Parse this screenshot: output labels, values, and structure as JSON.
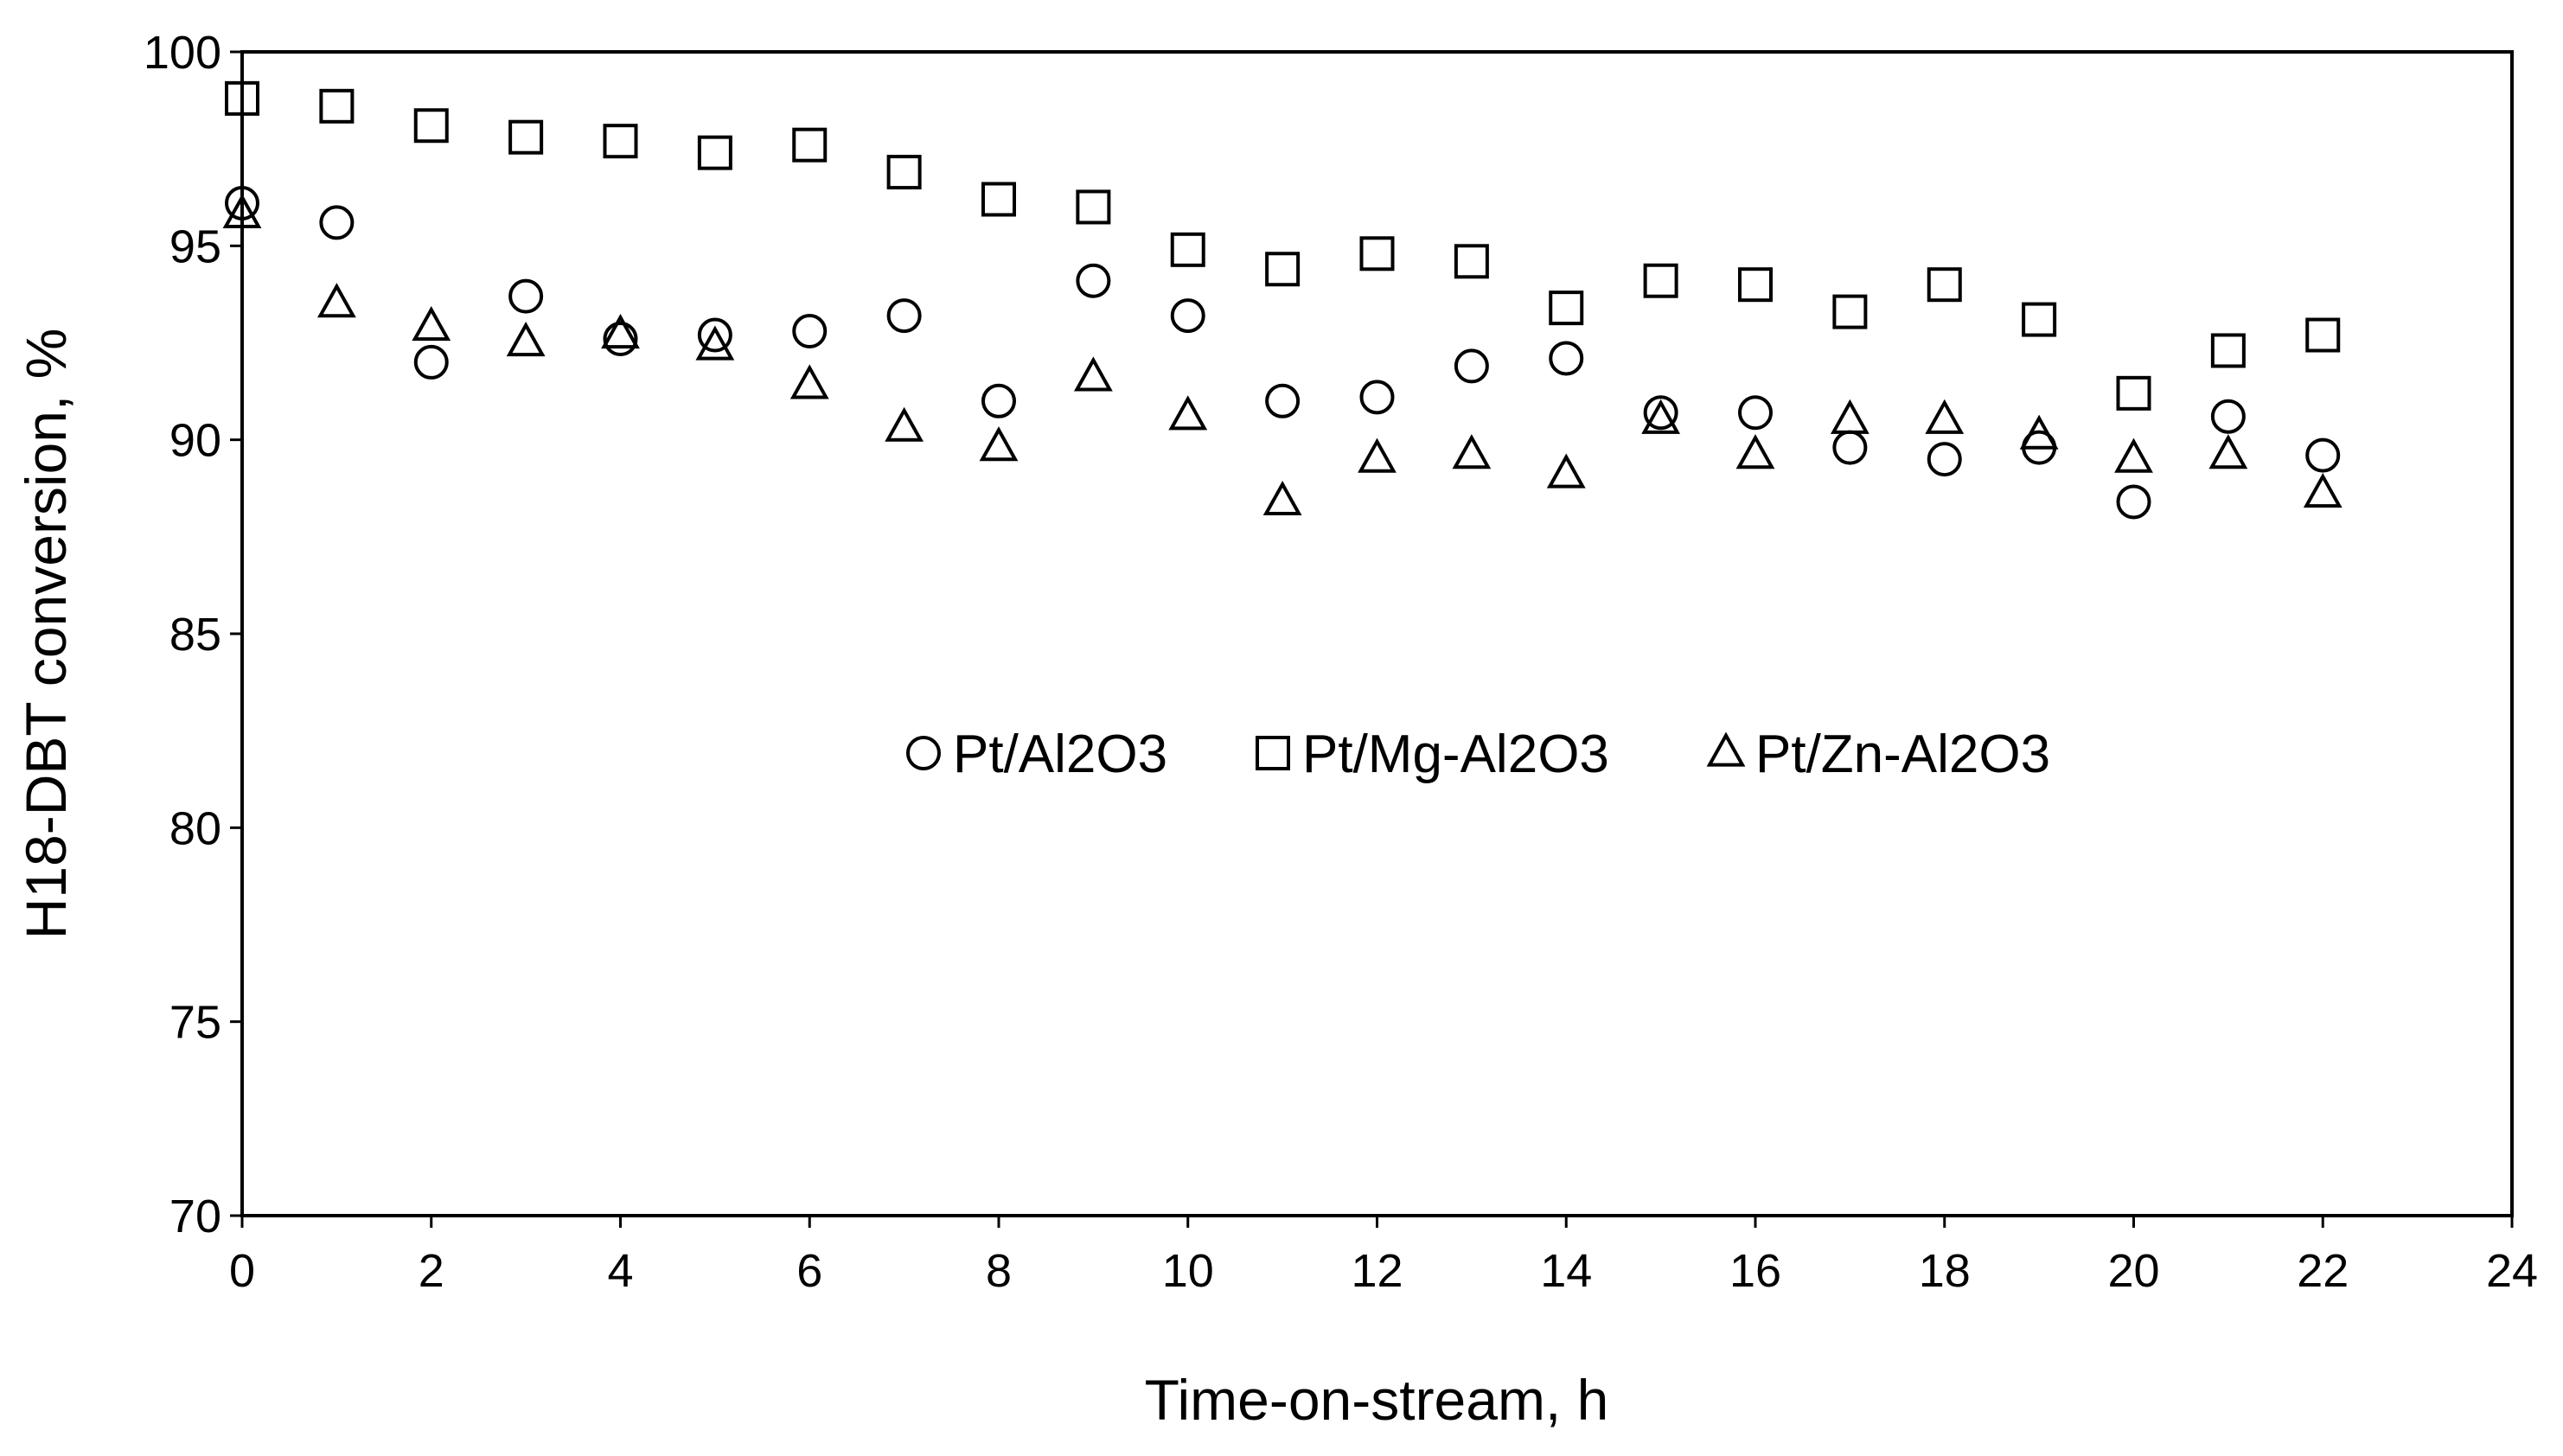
{
  "chart_data": {
    "type": "scatter",
    "xlabel": "Time-on-stream, h",
    "ylabel": "H18-DBT conversion, %",
    "xlim": [
      0,
      24
    ],
    "ylim": [
      70,
      100
    ],
    "x_ticks": [
      "0",
      "2",
      "4",
      "6",
      "8",
      "10",
      "12",
      "14",
      "16",
      "18",
      "20",
      "22",
      "24"
    ],
    "y_ticks": [
      "70",
      "75",
      "80",
      "85",
      "90",
      "95",
      "100"
    ],
    "grid": false,
    "legend_position": "center",
    "x": [
      0,
      1,
      2,
      3,
      4,
      5,
      6,
      7,
      8,
      9,
      10,
      11,
      12,
      13,
      14,
      15,
      16,
      17,
      18,
      19,
      20,
      21,
      22
    ],
    "series": [
      {
        "name": "Pt/Al2O3",
        "marker": "circle",
        "values": [
          96.1,
          95.6,
          92.0,
          93.7,
          92.6,
          92.7,
          92.8,
          93.2,
          91.0,
          94.1,
          93.2,
          91.0,
          91.1,
          91.9,
          92.1,
          90.7,
          90.7,
          89.8,
          89.5,
          89.8,
          88.4,
          90.6,
          89.6
        ]
      },
      {
        "name": "Pt/Mg-Al2O3",
        "marker": "square",
        "values": [
          98.8,
          98.6,
          98.1,
          97.8,
          97.7,
          97.4,
          97.6,
          96.9,
          96.2,
          96.0,
          94.9,
          94.4,
          94.8,
          94.6,
          93.4,
          94.1,
          94.0,
          93.3,
          94.0,
          93.1,
          91.2,
          92.3,
          92.7
        ]
      },
      {
        "name": "Pt/Zn-Al2O3",
        "marker": "triangle",
        "values": [
          95.8,
          93.5,
          92.9,
          92.5,
          92.7,
          92.4,
          91.4,
          90.3,
          89.8,
          91.6,
          90.6,
          88.4,
          89.5,
          89.6,
          89.1,
          90.5,
          89.6,
          90.5,
          90.5,
          90.1,
          89.5,
          89.6,
          88.6
        ]
      }
    ],
    "colors": {
      "marker_stroke": "#000000",
      "axis": "#000000",
      "background": "#ffffff"
    }
  }
}
